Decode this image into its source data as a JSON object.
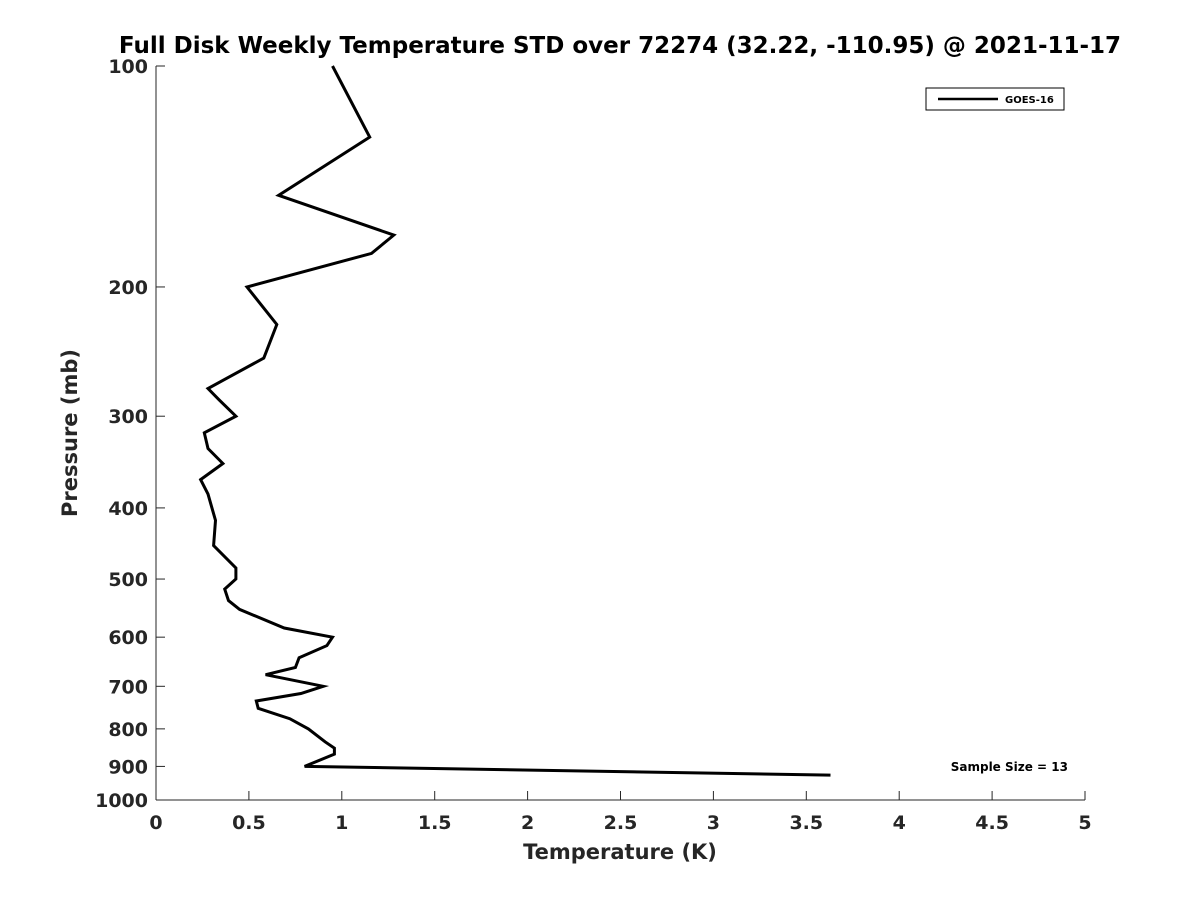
{
  "chart_data": {
    "type": "line",
    "title": "Full Disk Weekly Temperature STD over 72274 (32.22, -110.95) @ 2021-11-17",
    "xlabel": "Temperature (K)",
    "ylabel": "Pressure (mb)",
    "xlim": [
      0,
      5
    ],
    "ylim": [
      100,
      1000
    ],
    "y_scale": "log",
    "y_reversed": true,
    "x_ticks": [
      "0",
      "0.5",
      "1",
      "1.5",
      "2",
      "2.5",
      "3",
      "3.5",
      "4",
      "4.5",
      "5"
    ],
    "y_ticks": [
      "100",
      "200",
      "300",
      "400",
      "500",
      "600",
      "700",
      "800",
      "900",
      "1000"
    ],
    "grid": false,
    "legend_position": "top-right",
    "annotation": "Sample Size = 13",
    "series": [
      {
        "name": "GOES-16",
        "color": "#000000",
        "points": [
          {
            "x": 0.95,
            "y": 100
          },
          {
            "x": 1.15,
            "y": 125
          },
          {
            "x": 0.66,
            "y": 150
          },
          {
            "x": 1.28,
            "y": 170
          },
          {
            "x": 1.16,
            "y": 180
          },
          {
            "x": 0.49,
            "y": 200
          },
          {
            "x": 0.65,
            "y": 225
          },
          {
            "x": 0.58,
            "y": 250
          },
          {
            "x": 0.28,
            "y": 275
          },
          {
            "x": 0.34,
            "y": 285
          },
          {
            "x": 0.43,
            "y": 300
          },
          {
            "x": 0.26,
            "y": 316
          },
          {
            "x": 0.28,
            "y": 332
          },
          {
            "x": 0.36,
            "y": 348
          },
          {
            "x": 0.24,
            "y": 366
          },
          {
            "x": 0.28,
            "y": 383
          },
          {
            "x": 0.32,
            "y": 416
          },
          {
            "x": 0.31,
            "y": 450
          },
          {
            "x": 0.43,
            "y": 483
          },
          {
            "x": 0.43,
            "y": 500
          },
          {
            "x": 0.37,
            "y": 516
          },
          {
            "x": 0.39,
            "y": 535
          },
          {
            "x": 0.45,
            "y": 550
          },
          {
            "x": 0.69,
            "y": 583
          },
          {
            "x": 0.95,
            "y": 600
          },
          {
            "x": 0.92,
            "y": 616
          },
          {
            "x": 0.77,
            "y": 640
          },
          {
            "x": 0.75,
            "y": 660
          },
          {
            "x": 0.59,
            "y": 675
          },
          {
            "x": 0.9,
            "y": 700
          },
          {
            "x": 0.78,
            "y": 716
          },
          {
            "x": 0.54,
            "y": 733
          },
          {
            "x": 0.55,
            "y": 750
          },
          {
            "x": 0.72,
            "y": 775
          },
          {
            "x": 0.82,
            "y": 800
          },
          {
            "x": 0.91,
            "y": 833
          },
          {
            "x": 0.96,
            "y": 850
          },
          {
            "x": 0.96,
            "y": 866
          },
          {
            "x": 0.8,
            "y": 900
          },
          {
            "x": 3.63,
            "y": 925
          }
        ]
      }
    ]
  }
}
